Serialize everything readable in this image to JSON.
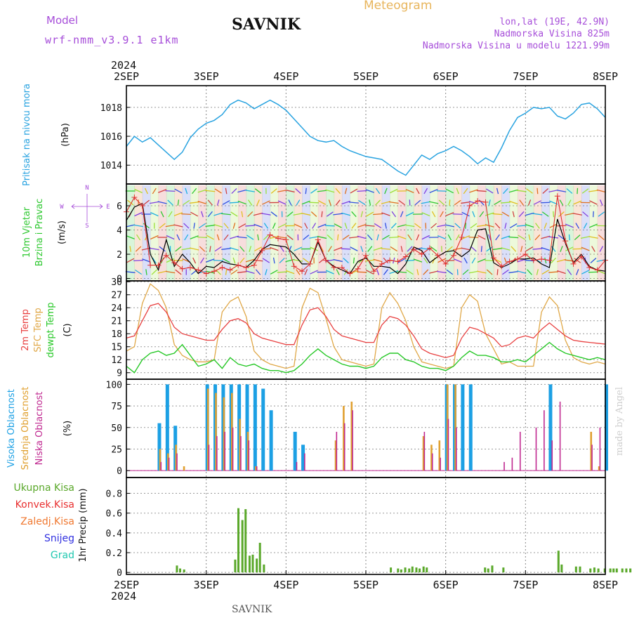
{
  "header": {
    "model_label": "Model",
    "model_name": "wrf-nmm_v3.9.1 e1km",
    "station": "SAVNIK",
    "product": "Meteogram",
    "coords": "lon,lat (19E, 42.9N)",
    "elevation": "Nadmorska Visina 825m",
    "model_elevation": "Nadmorska Visina u modelu 1221.99m"
  },
  "footer": {
    "station": "SAVNIK",
    "credit": "made by Angel"
  },
  "time_axis": {
    "year": "2024",
    "labels": [
      "2SEP",
      "3SEP",
      "4SEP",
      "5SEP",
      "6SEP",
      "7SEP",
      "8SEP"
    ],
    "days": 6
  },
  "colors": {
    "pressure": "#29a3e0",
    "wind_avg": "#000000",
    "wind_gust": "#e03030",
    "t2m": "#e84040",
    "tsfc": "#e0a848",
    "dewpt": "#28c828",
    "cloud_high": "#1ca0e4",
    "cloud_mid": "#e0a030",
    "cloud_low": "#c02890",
    "precip_total": "#5aa82a",
    "precip_conv": "#e83030",
    "precip_ice": "#f07830",
    "snow": "#3030e0",
    "hail": "#20c8b0",
    "axis_label_purple": "#a64dd9"
  },
  "chart_data": [
    {
      "type": "line",
      "panel": "pressure",
      "ylabel": "(hPa)",
      "side_labels": [
        "Pritisak na nivou mora"
      ],
      "yticks": [
        1014,
        1016,
        1018
      ],
      "ylim": [
        1012.7,
        1019.5
      ],
      "x": [
        0,
        0.1,
        0.2,
        0.3,
        0.4,
        0.5,
        0.6,
        0.7,
        0.8,
        0.9,
        1.0,
        1.1,
        1.2,
        1.3,
        1.4,
        1.5,
        1.6,
        1.7,
        1.8,
        1.9,
        2.0,
        2.1,
        2.2,
        2.3,
        2.4,
        2.5,
        2.6,
        2.7,
        2.8,
        2.9,
        3.0,
        3.1,
        3.2,
        3.3,
        3.4,
        3.5,
        3.6,
        3.7,
        3.8,
        3.9,
        4.0,
        4.1,
        4.2,
        4.3,
        4.4,
        4.5,
        4.6,
        4.7,
        4.8,
        4.9,
        5.0,
        5.1,
        5.2,
        5.3,
        5.4,
        5.5,
        5.6,
        5.7,
        5.8,
        5.9,
        6.0
      ],
      "series": [
        {
          "values": [
            1015.3,
            1016.0,
            1015.6,
            1015.9,
            1015.4,
            1014.9,
            1014.4,
            1014.9,
            1015.9,
            1016.5,
            1016.9,
            1017.1,
            1017.5,
            1018.2,
            1018.5,
            1018.3,
            1017.9,
            1018.2,
            1018.5,
            1018.2,
            1017.8,
            1017.2,
            1016.6,
            1016.0,
            1015.7,
            1015.6,
            1015.7,
            1015.3,
            1015.0,
            1014.8,
            1014.6,
            1014.5,
            1014.4,
            1014.0,
            1013.6,
            1013.3,
            1014.0,
            1014.7,
            1014.4,
            1014.8,
            1015.0,
            1015.3,
            1015.0,
            1014.6,
            1014.1,
            1014.5,
            1014.2,
            1015.2,
            1016.4,
            1017.3,
            1017.6,
            1018.0,
            1017.9,
            1018.0,
            1017.4,
            1017.2,
            1017.6,
            1018.2,
            1018.3,
            1017.9,
            1017.3
          ]
        }
      ]
    },
    {
      "type": "line",
      "panel": "wind",
      "ylabel": "(m/s)",
      "side_labels": [
        "10m Vjetar",
        "Brzina i Pravac"
      ],
      "compass": {
        "n": "N",
        "e": "E",
        "s": "S",
        "w": "W"
      },
      "yticks": [
        0,
        2,
        4,
        6
      ],
      "ylim": [
        -0.2,
        7.8
      ],
      "x": [
        0,
        0.1,
        0.2,
        0.3,
        0.4,
        0.5,
        0.6,
        0.7,
        0.8,
        0.9,
        1.0,
        1.1,
        1.2,
        1.3,
        1.4,
        1.5,
        1.6,
        1.7,
        1.8,
        1.9,
        2.0,
        2.1,
        2.2,
        2.3,
        2.4,
        2.5,
        2.6,
        2.7,
        2.8,
        2.9,
        3.0,
        3.1,
        3.2,
        3.3,
        3.4,
        3.5,
        3.6,
        3.7,
        3.8,
        3.9,
        4.0,
        4.1,
        4.2,
        4.3,
        4.4,
        4.5,
        4.6,
        4.7,
        4.8,
        4.9,
        5.0,
        5.1,
        5.2,
        5.3,
        5.4,
        5.5,
        5.6,
        5.7,
        5.8,
        5.9,
        6.0
      ],
      "series": [
        {
          "role": "average",
          "values": [
            4.8,
            5.9,
            6.2,
            2.0,
            0.7,
            3.2,
            1.0,
            2.0,
            1.3,
            0.4,
            1.0,
            0.9,
            1.4,
            1.2,
            1.1,
            0.9,
            1.5,
            2.4,
            2.8,
            2.7,
            2.6,
            2.0,
            1.2,
            1.2,
            3.0,
            1.5,
            1.0,
            0.7,
            0.4,
            1.4,
            1.7,
            1.0,
            1.0,
            0.9,
            0.4,
            1.2,
            2.6,
            2.3,
            1.3,
            1.8,
            2.2,
            2.3,
            1.8,
            2.3,
            4.0,
            4.1,
            1.3,
            0.9,
            1.2,
            1.6,
            1.6,
            1.7,
            1.2,
            0.9,
            4.9,
            2.9,
            1.3,
            2.0,
            1.0,
            0.7,
            0.6
          ]
        },
        {
          "role": "gust",
          "values": [
            5.5,
            6.7,
            6.0,
            1.1,
            1.1,
            1.9,
            1.3,
            0.8,
            0.9,
            0.7,
            0.4,
            0.6,
            0.9,
            0.7,
            1.1,
            0.9,
            1.1,
            2.3,
            3.6,
            3.3,
            3.2,
            1.0,
            0.6,
            1.2,
            3.2,
            1.5,
            0.9,
            0.9,
            0.4,
            0.8,
            1.9,
            0.6,
            1.2,
            1.5,
            1.4,
            1.8,
            2.4,
            2.0,
            2.5,
            1.9,
            1.2,
            1.9,
            3.4,
            6.0,
            6.4,
            6.3,
            1.7,
            1.0,
            1.4,
            1.6,
            2.0,
            1.5,
            1.6,
            1.5,
            6.8,
            3.1,
            1.2,
            1.8,
            0.9,
            0.7,
            1.5
          ]
        }
      ]
    },
    {
      "type": "line",
      "panel": "temperature",
      "ylabel": "(C)",
      "side_labels": [
        "2m Temp",
        "SFC Temp",
        "dewpt Temp"
      ],
      "yticks": [
        9,
        12,
        15,
        18,
        21,
        24,
        27,
        30
      ],
      "ylim": [
        7.5,
        30.2
      ],
      "x": [
        0,
        0.1,
        0.2,
        0.3,
        0.4,
        0.5,
        0.6,
        0.7,
        0.8,
        0.9,
        1.0,
        1.1,
        1.2,
        1.3,
        1.4,
        1.5,
        1.6,
        1.7,
        1.8,
        1.9,
        2.0,
        2.1,
        2.2,
        2.3,
        2.4,
        2.5,
        2.6,
        2.7,
        2.8,
        2.9,
        3.0,
        3.1,
        3.2,
        3.3,
        3.4,
        3.5,
        3.6,
        3.7,
        3.8,
        3.9,
        4.0,
        4.1,
        4.2,
        4.3,
        4.4,
        4.5,
        4.6,
        4.7,
        4.8,
        4.9,
        5.0,
        5.1,
        5.2,
        5.3,
        5.4,
        5.5,
        5.6,
        5.7,
        5.8,
        5.9,
        6.0
      ],
      "series": [
        {
          "name": "2m Temp",
          "values": [
            17.0,
            17.5,
            21.0,
            24.5,
            25.0,
            23.0,
            19.5,
            18.0,
            17.5,
            17.0,
            16.5,
            16.5,
            19.0,
            21.0,
            21.5,
            20.5,
            18.0,
            17.0,
            16.5,
            16.0,
            15.5,
            15.5,
            20.0,
            23.5,
            24.0,
            22.0,
            19.0,
            17.5,
            17.0,
            16.5,
            16.0,
            16.0,
            20.0,
            22.0,
            21.5,
            20.0,
            17.5,
            14.5,
            13.5,
            13.0,
            12.5,
            13.0,
            17.0,
            19.5,
            19.0,
            18.0,
            17.0,
            15.0,
            15.5,
            17.0,
            17.5,
            17.0,
            19.0,
            20.5,
            19.0,
            17.5,
            16.5,
            16.2,
            16.0,
            15.8,
            15.6
          ]
        },
        {
          "name": "SFC Temp",
          "values": [
            14.0,
            15.0,
            25.0,
            29.5,
            28.0,
            24.0,
            15.5,
            13.0,
            12.0,
            11.5,
            11.5,
            12.0,
            23.0,
            25.5,
            26.5,
            22.0,
            14.0,
            12.0,
            11.0,
            10.5,
            10.0,
            10.5,
            24.0,
            28.5,
            27.5,
            21.5,
            15.0,
            12.0,
            11.5,
            11.0,
            10.5,
            11.0,
            24.0,
            27.5,
            25.0,
            21.0,
            15.0,
            11.5,
            11.0,
            10.5,
            10.0,
            10.5,
            24.0,
            27.0,
            25.5,
            18.0,
            14.5,
            11.0,
            11.5,
            10.5,
            10.5,
            10.5,
            23.0,
            26.5,
            24.5,
            16.5,
            12.5,
            11.5,
            11.0,
            11.5,
            11.0
          ]
        },
        {
          "name": "dewpt Temp",
          "values": [
            10.5,
            9.0,
            12.0,
            13.5,
            14.0,
            13.0,
            13.5,
            15.5,
            13.0,
            10.5,
            11.0,
            12.0,
            10.0,
            12.5,
            11.0,
            10.5,
            11.0,
            10.0,
            9.5,
            9.5,
            9.0,
            9.5,
            11.0,
            13.0,
            14.5,
            13.0,
            12.0,
            11.0,
            10.5,
            10.5,
            10.0,
            10.5,
            12.5,
            13.5,
            13.5,
            12.0,
            11.5,
            10.5,
            10.0,
            10.0,
            9.5,
            10.5,
            12.5,
            14.0,
            13.0,
            13.0,
            12.5,
            11.5,
            11.5,
            12.0,
            11.5,
            13.0,
            14.5,
            16.0,
            14.5,
            13.5,
            13.0,
            12.5,
            12.0,
            12.5,
            12.0
          ]
        }
      ]
    },
    {
      "type": "bar",
      "panel": "cloud",
      "ylabel": "(%)",
      "side_labels": [
        "Visoka Oblacnost",
        "Srednja Oblacnost",
        "Niska Oblacnost"
      ],
      "yticks": [
        0,
        25,
        50,
        75,
        100
      ],
      "ylim": [
        -8,
        106
      ],
      "x": [
        0,
        0.1,
        0.2,
        0.3,
        0.4,
        0.5,
        0.6,
        0.7,
        0.8,
        0.9,
        1.0,
        1.1,
        1.2,
        1.3,
        1.4,
        1.5,
        1.6,
        1.7,
        1.8,
        1.9,
        2.0,
        2.1,
        2.2,
        2.3,
        2.4,
        2.5,
        2.6,
        2.7,
        2.8,
        2.9,
        3.0,
        3.1,
        3.2,
        3.3,
        3.4,
        3.5,
        3.6,
        3.7,
        3.8,
        3.9,
        4.0,
        4.1,
        4.2,
        4.3,
        4.4,
        4.5,
        4.6,
        4.7,
        4.8,
        4.9,
        5.0,
        5.1,
        5.2,
        5.3,
        5.4,
        5.5,
        5.6,
        5.7,
        5.8,
        5.9,
        6.0
      ],
      "series": [
        {
          "name": "Visoka Oblacnost",
          "values": [
            0,
            0,
            0,
            0,
            55,
            100,
            52,
            0,
            0,
            0,
            100,
            100,
            100,
            100,
            100,
            100,
            100,
            95,
            70,
            0,
            0,
            45,
            30,
            0,
            0,
            0,
            0,
            0,
            0,
            0,
            0,
            0,
            0,
            0,
            0,
            0,
            0,
            0,
            0,
            0,
            100,
            100,
            100,
            100,
            0,
            0,
            0,
            0,
            0,
            0,
            0,
            0,
            0,
            100,
            0,
            0,
            0,
            0,
            0,
            0,
            100
          ]
        },
        {
          "name": "Srednja Oblacnost",
          "values": [
            0,
            0,
            0,
            0,
            25,
            20,
            30,
            5,
            0,
            0,
            95,
            90,
            85,
            90,
            60,
            45,
            5,
            0,
            0,
            0,
            0,
            0,
            0,
            0,
            0,
            0,
            35,
            75,
            80,
            0,
            0,
            0,
            0,
            0,
            0,
            0,
            0,
            40,
            30,
            35,
            100,
            100,
            0,
            0,
            0,
            0,
            0,
            0,
            0,
            0,
            0,
            0,
            0,
            0,
            0,
            0,
            0,
            0,
            45,
            5,
            0
          ]
        },
        {
          "name": "Niska Oblacnost",
          "values": [
            0,
            0,
            0,
            0,
            10,
            15,
            20,
            0,
            0,
            0,
            30,
            40,
            45,
            50,
            40,
            35,
            5,
            0,
            0,
            0,
            0,
            10,
            20,
            0,
            0,
            0,
            45,
            55,
            70,
            0,
            0,
            0,
            0,
            0,
            0,
            0,
            0,
            45,
            20,
            15,
            60,
            50,
            0,
            0,
            0,
            0,
            0,
            10,
            15,
            45,
            0,
            50,
            70,
            35,
            80,
            0,
            0,
            0,
            30,
            50,
            0
          ]
        }
      ]
    },
    {
      "type": "bar",
      "panel": "precip",
      "ylabel": "1hr Precip (mm)",
      "side_labels": [
        "Ukupna Kisa",
        "Konvek.Kisa",
        "Zaledj.Kisa",
        "Snijeg",
        "Grad"
      ],
      "yticks": [
        0,
        0.2,
        0.4,
        0.6,
        0.8
      ],
      "ylim": [
        -0.02,
        0.96
      ],
      "x": [
        0.62,
        0.66,
        0.71,
        1.35,
        1.39,
        1.44,
        1.48,
        1.53,
        1.57,
        1.62,
        1.66,
        1.71,
        3.3,
        3.39,
        3.43,
        3.48,
        3.53,
        3.57,
        3.62,
        3.66,
        3.71,
        3.75,
        4.48,
        4.52,
        4.57,
        4.71,
        5.4,
        5.44,
        5.62,
        5.67,
        5.8,
        5.85,
        5.9,
        5.98,
        6.05,
        6.09,
        6.13,
        6.2,
        6.25,
        6.3
      ],
      "series": [
        {
          "name": "Ukupna Kisa",
          "values": [
            0.07,
            0.04,
            0.03,
            0.13,
            0.65,
            0.53,
            0.64,
            0.17,
            0.18,
            0.14,
            0.3,
            0.08,
            0.05,
            0.04,
            0.03,
            0.05,
            0.04,
            0.06,
            0.05,
            0.04,
            0.06,
            0.05,
            0.05,
            0.04,
            0.07,
            0.05,
            0.22,
            0.08,
            0.06,
            0.06,
            0.04,
            0.05,
            0.04,
            0.04,
            0.04,
            0.04,
            0.04,
            0.04,
            0.04,
            0.04
          ]
        }
      ]
    }
  ]
}
